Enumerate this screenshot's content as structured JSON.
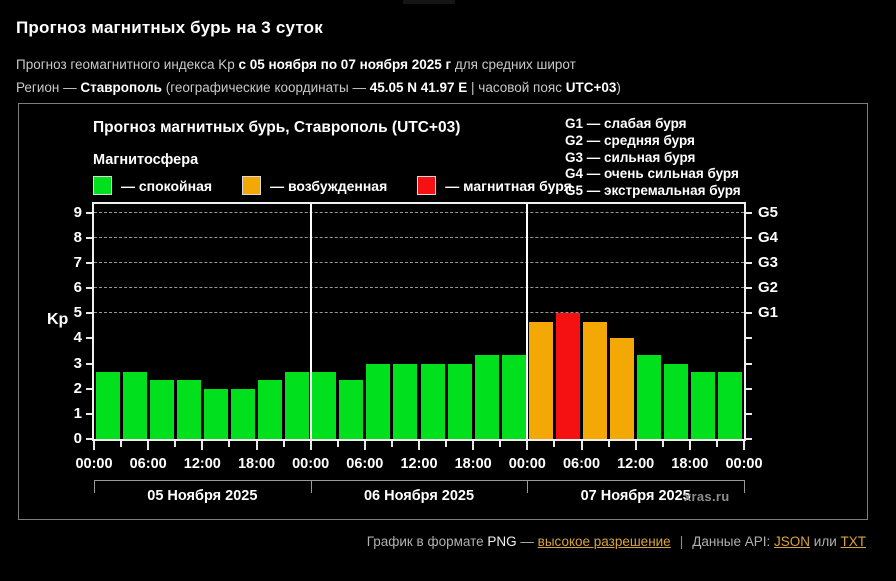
{
  "page": {
    "title": "Прогноз магнитных бурь на 3 суток",
    "subtitle": {
      "part1": "Прогноз геомагнитного индекса Kp ",
      "bold1": "с 05 ноября по 07 ноября 2025 г",
      "part2": " для средних широт"
    },
    "region_line": {
      "part1": "Регион — ",
      "bold1": "Ставрополь",
      "part2": " (географические координаты — ",
      "bold2": "45.05 N 41.97 E",
      "part3": " | часовой пояс ",
      "bold3": "UTC+03",
      "part4": ")"
    }
  },
  "chart": {
    "title": "Прогноз магнитных бурь, Ставрополь (UTC+03)",
    "legend_title": "Магнитосфера",
    "legend": [
      {
        "name": "quiet",
        "label": "— спокойная",
        "color": "#00e01c"
      },
      {
        "name": "excited",
        "label": "— возбужденная",
        "color": "#f3a805"
      },
      {
        "name": "storm",
        "label": "— магнитная буря",
        "color": "#f51111"
      }
    ],
    "g_scale_legend": [
      "G1 — слабая буря",
      "G2 — средняя буря",
      "G3 — сильная буря",
      "G4 — очень сильная буря",
      "G5 — экстремальная буря"
    ],
    "watermark": "xras.ru"
  },
  "chart_data": {
    "type": "bar",
    "title": "Прогноз магнитных бурь, Ставрополь (UTC+03)",
    "ylabel": "Kp",
    "ylim": [
      0,
      9.35
    ],
    "y_ticks": [
      0,
      1,
      2,
      3,
      4,
      5,
      6,
      7,
      8,
      9
    ],
    "gridlines_at": [
      5,
      6,
      7,
      8,
      9
    ],
    "right_axis": [
      {
        "label": "G5",
        "kp": 9
      },
      {
        "label": "G4",
        "kp": 8
      },
      {
        "label": "G3",
        "kp": 7
      },
      {
        "label": "G2",
        "kp": 6
      },
      {
        "label": "G1",
        "kp": 5
      }
    ],
    "interval_hours": 3,
    "x_tick_labels": [
      "00:00",
      "06:00",
      "12:00",
      "18:00",
      "00:00",
      "06:00",
      "12:00",
      "18:00",
      "00:00",
      "06:00",
      "12:00",
      "18:00",
      "00:00"
    ],
    "day_separator_slots": [
      8,
      16
    ],
    "days": [
      {
        "date_label": "05 Ноября 2025",
        "values": [
          2.67,
          2.67,
          2.33,
          2.33,
          2.0,
          2.0,
          2.33,
          2.67
        ]
      },
      {
        "date_label": "06 Ноября 2025",
        "values": [
          2.67,
          2.33,
          3.0,
          3.0,
          3.0,
          3.0,
          3.33,
          3.33
        ]
      },
      {
        "date_label": "07 Ноября 2025",
        "values": [
          4.67,
          5.0,
          4.67,
          4.0,
          3.33,
          3.0,
          2.67,
          2.67
        ]
      }
    ],
    "color_rules": {
      "quiet_below": 4,
      "storm_from": 5,
      "quiet_color": "#00e01c",
      "excited_color": "#f3a805",
      "storm_color": "#f51111"
    }
  },
  "footer": {
    "part1": "График в формате ",
    "png": "PNG",
    "dash": " — ",
    "link_hires": "высокое разрешение",
    "divider": "|",
    "part2": "Данные API: ",
    "link_json": "JSON",
    "or": " или ",
    "link_txt": "TXT",
    "link_color": "#d9a43a"
  }
}
